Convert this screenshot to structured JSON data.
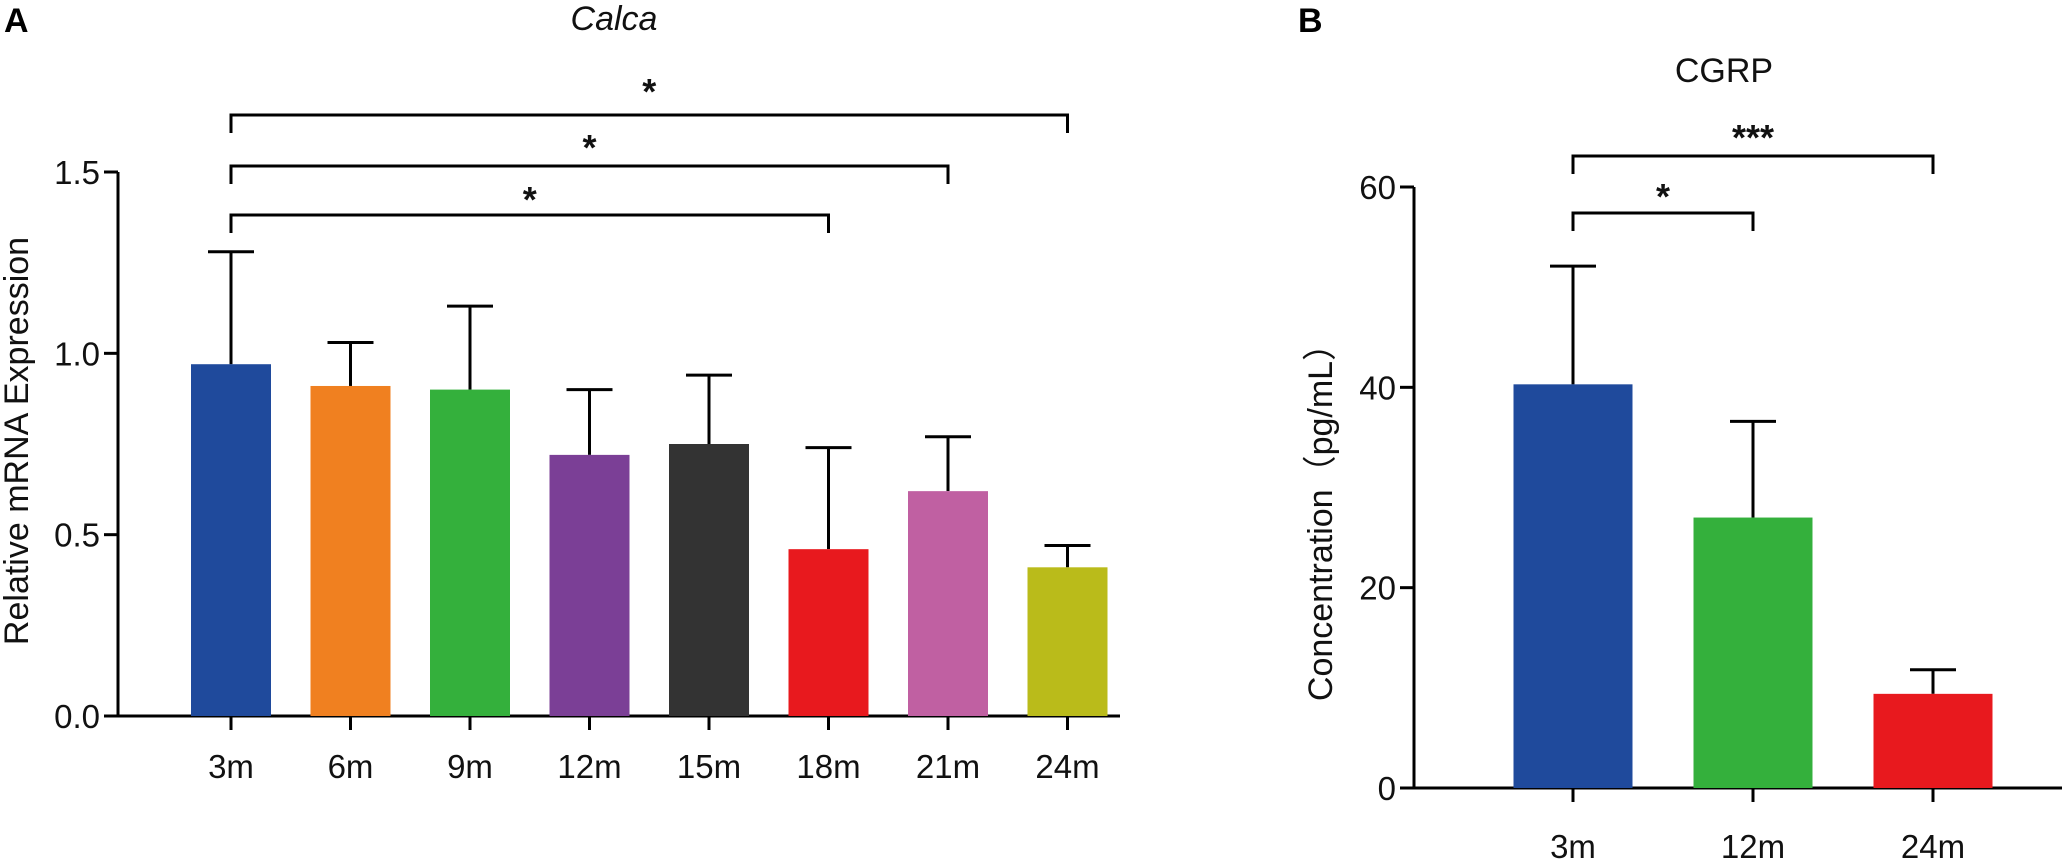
{
  "panel_labels": [
    "A",
    "B"
  ],
  "chart_data": [
    {
      "type": "bar",
      "panel": "A",
      "title": "Calca",
      "title_italic": true,
      "xlabel": "",
      "ylabel": "Relative mRNA Expression",
      "ylim": [
        0,
        1.5
      ],
      "yticks": [
        0.0,
        0.5,
        1.0,
        1.5
      ],
      "ytick_labels": [
        "0.0",
        "0.5",
        "1.0",
        "1.5"
      ],
      "categories": [
        "3m",
        "6m",
        "9m",
        "12m",
        "15m",
        "18m",
        "21m",
        "24m"
      ],
      "values": [
        0.97,
        0.91,
        0.9,
        0.72,
        0.75,
        0.46,
        0.62,
        0.41
      ],
      "errors": [
        0.31,
        0.12,
        0.23,
        0.18,
        0.19,
        0.28,
        0.15,
        0.06
      ],
      "colors": [
        "#1f4a9c",
        "#f08020",
        "#34b03c",
        "#7b3f96",
        "#333333",
        "#e8191e",
        "#c060a2",
        "#babb1a"
      ],
      "significance": [
        {
          "from": "3m",
          "to": "18m",
          "label": "*"
        },
        {
          "from": "3m",
          "to": "21m",
          "label": "*"
        },
        {
          "from": "3m",
          "to": "24m",
          "label": "*"
        }
      ]
    },
    {
      "type": "bar",
      "panel": "B",
      "title": "CGRP",
      "title_italic": false,
      "xlabel": "",
      "ylabel": "Concentration（pg/mL）",
      "ylim": [
        0,
        60
      ],
      "yticks": [
        0,
        20,
        40,
        60
      ],
      "ytick_labels": [
        "0",
        "20",
        "40",
        "60"
      ],
      "categories": [
        "3m",
        "12m",
        "24m"
      ],
      "values": [
        40.3,
        27.0,
        9.4
      ],
      "errors": [
        11.8,
        9.6,
        2.4
      ],
      "colors": [
        "#1f4a9c",
        "#34b03c",
        "#e8191e"
      ],
      "significance": [
        {
          "from": "3m",
          "to": "12m",
          "label": "*"
        },
        {
          "from": "3m",
          "to": "24m",
          "label": "***"
        }
      ]
    }
  ]
}
